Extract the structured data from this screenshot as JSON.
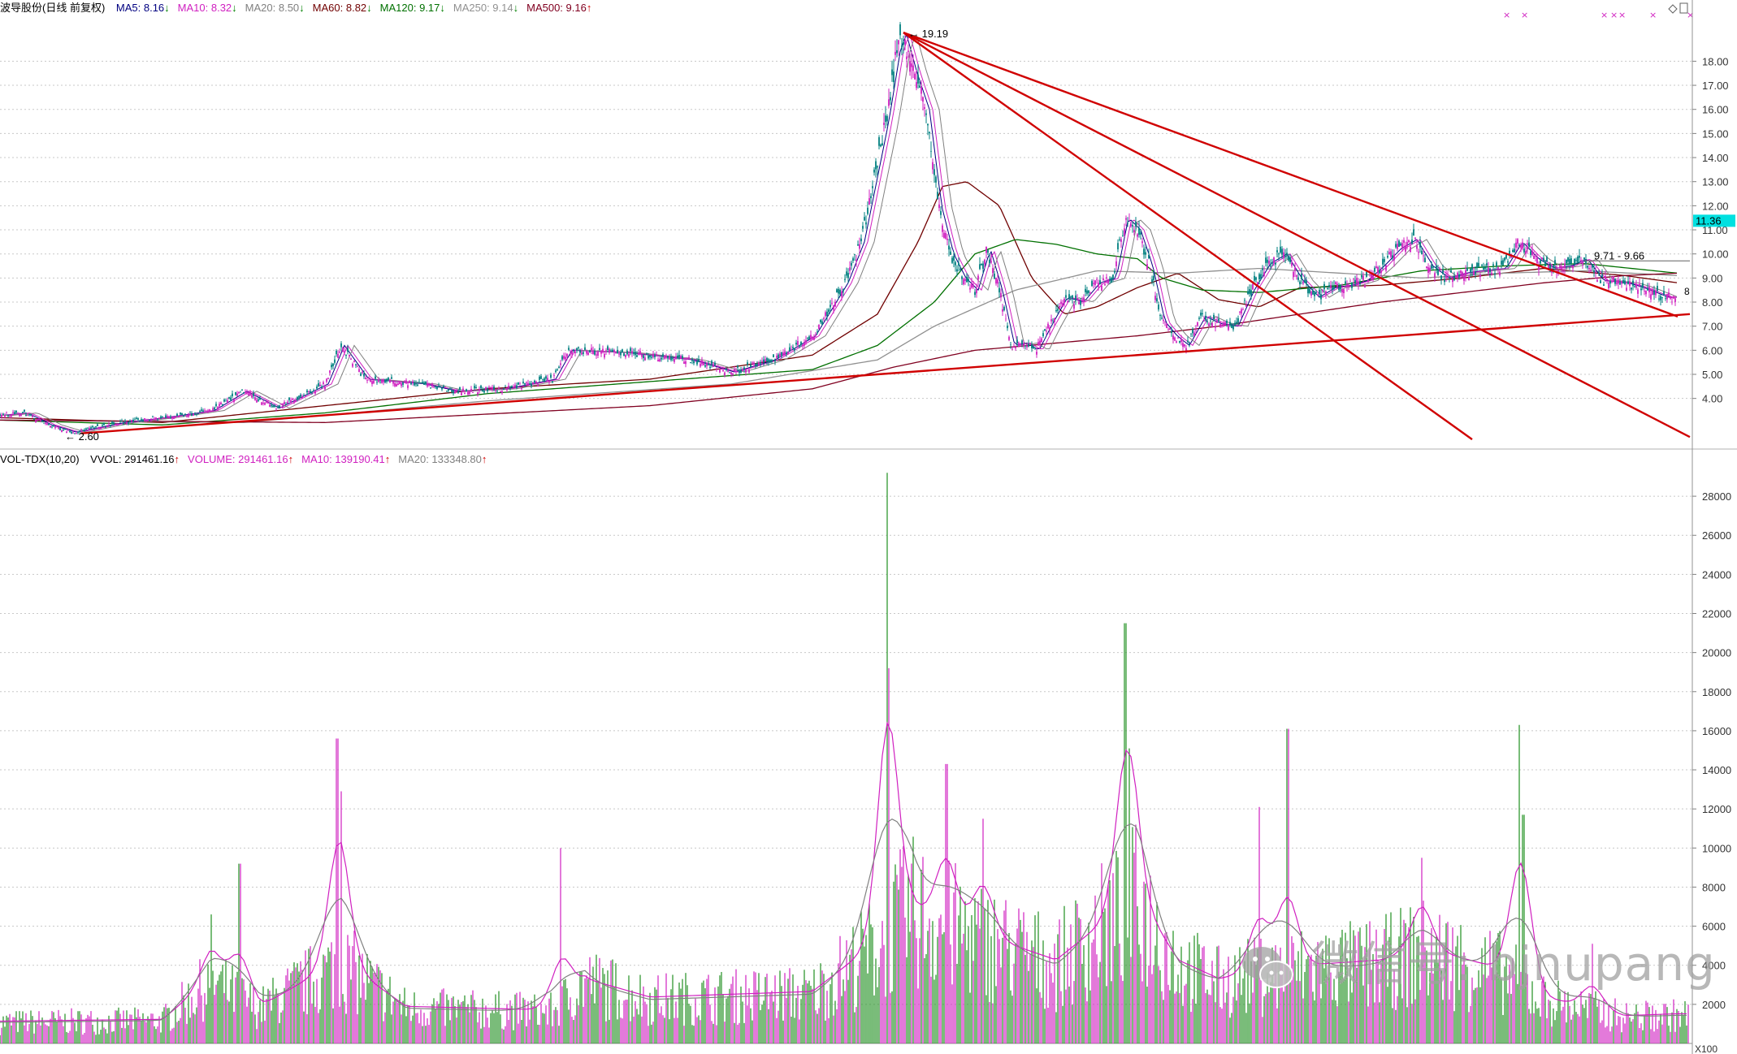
{
  "price_legend": {
    "title": "波导股份(日线 前复权)",
    "items": [
      {
        "label": "MA5: 8.16",
        "arrow": "↓",
        "dir": "dn",
        "color": "#000080"
      },
      {
        "label": "MA10: 8.32",
        "arrow": "↓",
        "dir": "dn",
        "color": "#d020c0"
      },
      {
        "label": "MA20: 8.50",
        "arrow": "↓",
        "dir": "dn",
        "color": "#808080"
      },
      {
        "label": "MA60: 8.82",
        "arrow": "↓",
        "dir": "dn",
        "color": "#700000"
      },
      {
        "label": "MA120: 9.17",
        "arrow": "↓",
        "dir": "dn",
        "color": "#007000"
      },
      {
        "label": "MA250: 9.14",
        "arrow": "↓",
        "dir": "dn",
        "color": "#909090"
      },
      {
        "label": "MA500: 9.16",
        "arrow": "↑",
        "dir": "up",
        "color": "#800020"
      }
    ]
  },
  "volume_legend": {
    "title": "VOL-TDX(10,20)",
    "items": [
      {
        "label": "VVOL: 291461.16",
        "arrow": "↑",
        "dir": "up",
        "color": "#000000"
      },
      {
        "label": "VOLUME: 291461.16",
        "arrow": "↑",
        "dir": "up",
        "color": "#d020c0"
      },
      {
        "label": "MA10: 139190.41",
        "arrow": "↑",
        "dir": "up",
        "color": "#d020c0"
      },
      {
        "label": "MA20: 133348.80",
        "arrow": "↑",
        "dir": "up",
        "color": "#808080"
      }
    ]
  },
  "annotations": {
    "high": "19.19",
    "low": "2.60",
    "range": "9.71 - 9.66",
    "current": "11.36",
    "last_mark": "8",
    "x100": "X100",
    "x_marks": "×"
  },
  "watermark": "微信号: bjnupang",
  "colors": {
    "up": "#d020c0",
    "down": "#209020",
    "trend": "#d00000",
    "badge": "#00e0e0"
  },
  "chart_data": [
    {
      "type": "candlestick",
      "title": "波导股份(日线 前复权)",
      "y_ticks": [
        4,
        5,
        6,
        7,
        8,
        9,
        10,
        11,
        12,
        13,
        14,
        15,
        16,
        17,
        18
      ],
      "y_tick_labels": [
        "4.00",
        "5.00",
        "6.00",
        "7.00",
        "8.00",
        "9.00",
        "10.00",
        "11.00",
        "12.00",
        "13.00",
        "14.00",
        "15.00",
        "16.00",
        "17.00",
        "18.00"
      ],
      "ylim": [
        2.0,
        19.8
      ],
      "grid": true,
      "bars": 1040,
      "close_path": [
        [
          0,
          3.3
        ],
        [
          30,
          3.4
        ],
        [
          60,
          2.9
        ],
        [
          90,
          2.6
        ],
        [
          150,
          3.0
        ],
        [
          200,
          3.2
        ],
        [
          260,
          3.5
        ],
        [
          300,
          4.3
        ],
        [
          340,
          3.6
        ],
        [
          400,
          4.6
        ],
        [
          420,
          6.2
        ],
        [
          450,
          4.8
        ],
        [
          520,
          4.6
        ],
        [
          560,
          4.3
        ],
        [
          620,
          4.4
        ],
        [
          680,
          4.8
        ],
        [
          700,
          6.0
        ],
        [
          770,
          5.9
        ],
        [
          850,
          5.6
        ],
        [
          900,
          5.1
        ],
        [
          950,
          5.6
        ],
        [
          1000,
          6.6
        ],
        [
          1040,
          8.8
        ],
        [
          1060,
          10.5
        ],
        [
          1075,
          13.0
        ],
        [
          1090,
          15.5
        ],
        [
          1105,
          18.6
        ],
        [
          1112,
          19.1
        ],
        [
          1125,
          17.5
        ],
        [
          1140,
          16.0
        ],
        [
          1155,
          12.0
        ],
        [
          1170,
          10.0
        ],
        [
          1185,
          9.0
        ],
        [
          1200,
          8.5
        ],
        [
          1215,
          10.2
        ],
        [
          1230,
          8.5
        ],
        [
          1245,
          6.2
        ],
        [
          1260,
          6.3
        ],
        [
          1275,
          6.0
        ],
        [
          1290,
          7.0
        ],
        [
          1310,
          8.2
        ],
        [
          1330,
          8.0
        ],
        [
          1350,
          8.8
        ],
        [
          1370,
          9.0
        ],
        [
          1385,
          11.5
        ],
        [
          1400,
          11.0
        ],
        [
          1415,
          9.5
        ],
        [
          1430,
          7.2
        ],
        [
          1445,
          6.6
        ],
        [
          1460,
          6.2
        ],
        [
          1480,
          7.4
        ],
        [
          1500,
          7.1
        ],
        [
          1520,
          7.0
        ],
        [
          1540,
          8.5
        ],
        [
          1560,
          9.6
        ],
        [
          1580,
          10.0
        ],
        [
          1600,
          8.9
        ],
        [
          1620,
          8.2
        ],
        [
          1640,
          8.6
        ],
        [
          1660,
          8.7
        ],
        [
          1680,
          8.9
        ],
        [
          1700,
          9.5
        ],
        [
          1720,
          10.2
        ],
        [
          1740,
          10.6
        ],
        [
          1760,
          9.5
        ],
        [
          1780,
          9.0
        ],
        [
          1800,
          9.2
        ],
        [
          1820,
          9.3
        ],
        [
          1850,
          9.4
        ],
        [
          1870,
          10.5
        ],
        [
          1890,
          9.8
        ],
        [
          1910,
          9.4
        ],
        [
          1930,
          9.5
        ],
        [
          1950,
          9.8
        ],
        [
          1970,
          8.9
        ],
        [
          2000,
          8.8
        ],
        [
          2020,
          8.6
        ],
        [
          2050,
          8.2
        ],
        [
          2065,
          8.2
        ]
      ],
      "x_index_to_plot_x": "linear 0..2080",
      "ma_lines": [
        {
          "name": "MA60",
          "color": "#700000",
          "path": [
            [
              0,
              3.2
            ],
            [
              200,
              3.0
            ],
            [
              400,
              3.7
            ],
            [
              600,
              4.4
            ],
            [
              800,
              4.8
            ],
            [
              1000,
              5.8
            ],
            [
              1080,
              7.5
            ],
            [
              1130,
              10.5
            ],
            [
              1160,
              12.8
            ],
            [
              1190,
              13.0
            ],
            [
              1230,
              12.0
            ],
            [
              1270,
              9.0
            ],
            [
              1310,
              7.5
            ],
            [
              1350,
              7.8
            ],
            [
              1400,
              8.6
            ],
            [
              1450,
              9.2
            ],
            [
              1500,
              8.1
            ],
            [
              1550,
              7.8
            ],
            [
              1600,
              8.6
            ],
            [
              1700,
              8.7
            ],
            [
              1800,
              9.0
            ],
            [
              1900,
              9.4
            ],
            [
              2000,
              9.1
            ],
            [
              2065,
              8.8
            ]
          ]
        },
        {
          "name": "MA120",
          "color": "#007000",
          "path": [
            [
              0,
              3.1
            ],
            [
              200,
              2.9
            ],
            [
              400,
              3.4
            ],
            [
              600,
              4.2
            ],
            [
              800,
              4.7
            ],
            [
              1000,
              5.2
            ],
            [
              1080,
              6.2
            ],
            [
              1150,
              8.0
            ],
            [
              1200,
              10.0
            ],
            [
              1250,
              10.6
            ],
            [
              1300,
              10.4
            ],
            [
              1350,
              10.0
            ],
            [
              1400,
              9.8
            ],
            [
              1430,
              9.0
            ],
            [
              1480,
              8.5
            ],
            [
              1550,
              8.4
            ],
            [
              1650,
              8.7
            ],
            [
              1750,
              9.3
            ],
            [
              1850,
              9.5
            ],
            [
              1950,
              9.6
            ],
            [
              2065,
              9.2
            ]
          ]
        },
        {
          "name": "MA250",
          "color": "#909090",
          "path": [
            [
              0,
              3.1
            ],
            [
              300,
              3.0
            ],
            [
              600,
              3.9
            ],
            [
              900,
              4.6
            ],
            [
              1080,
              5.6
            ],
            [
              1150,
              7.0
            ],
            [
              1250,
              8.5
            ],
            [
              1350,
              9.3
            ],
            [
              1450,
              9.2
            ],
            [
              1550,
              9.4
            ],
            [
              1650,
              9.2
            ],
            [
              1750,
              9.0
            ],
            [
              1850,
              9.2
            ],
            [
              1950,
              9.3
            ],
            [
              2065,
              9.1
            ]
          ]
        },
        {
          "name": "MA500",
          "color": "#800020",
          "path": [
            [
              0,
              3.1
            ],
            [
              400,
              3.0
            ],
            [
              800,
              3.7
            ],
            [
              1000,
              4.4
            ],
            [
              1100,
              5.3
            ],
            [
              1200,
              6.0
            ],
            [
              1300,
              6.3
            ],
            [
              1400,
              6.6
            ],
            [
              1500,
              7.0
            ],
            [
              1600,
              7.5
            ],
            [
              1700,
              8.0
            ],
            [
              1800,
              8.4
            ],
            [
              1900,
              8.8
            ],
            [
              2000,
              9.1
            ],
            [
              2065,
              9.2
            ]
          ]
        }
      ],
      "trend_lines": [
        {
          "from": [
            1112,
            19.19
          ],
          "to": [
            2065,
            7.4
          ]
        },
        {
          "from": [
            1112,
            19.19
          ],
          "to": [
            1812,
            2.3
          ]
        },
        {
          "from": [
            1112,
            19.19
          ],
          "to": [
            2080,
            2.4
          ]
        },
        {
          "from": [
            100,
            2.55
          ],
          "to": [
            2080,
            7.5
          ]
        }
      ]
    },
    {
      "type": "bar",
      "title": "VOL-TDX(10,20)",
      "y_ticks": [
        2000,
        4000,
        6000,
        8000,
        10000,
        12000,
        14000,
        16000,
        18000,
        20000,
        22000,
        24000,
        26000,
        28000
      ],
      "y_tick_labels": [
        "2000",
        "4000",
        "6000",
        "8000",
        "10000",
        "12000",
        "14000",
        "16000",
        "18000",
        "20000",
        "22000",
        "24000",
        "26000",
        "28000"
      ],
      "ylim": [
        0,
        29500
      ],
      "unit": "X100",
      "grid": true,
      "peaks": [
        [
          260,
          6600
        ],
        [
          295,
          9200
        ],
        [
          415,
          15600
        ],
        [
          420,
          12900
        ],
        [
          690,
          10000
        ],
        [
          1092,
          29200
        ],
        [
          1094,
          19200
        ],
        [
          1165,
          14300
        ],
        [
          1210,
          11500
        ],
        [
          1385,
          21500
        ],
        [
          1390,
          15100
        ],
        [
          1550,
          12100
        ],
        [
          1585,
          16100
        ],
        [
          1750,
          9500
        ],
        [
          1870,
          16300
        ],
        [
          1875,
          11700
        ],
        [
          1960,
          5100
        ]
      ],
      "baseline_profile": [
        [
          0,
          1200
        ],
        [
          200,
          1300
        ],
        [
          260,
          3500
        ],
        [
          320,
          2000
        ],
        [
          420,
          4500
        ],
        [
          500,
          2000
        ],
        [
          680,
          1800
        ],
        [
          720,
          3500
        ],
        [
          800,
          2500
        ],
        [
          1000,
          2800
        ],
        [
          1080,
          5500
        ],
        [
          1120,
          7500
        ],
        [
          1200,
          6000
        ],
        [
          1300,
          4500
        ],
        [
          1400,
          8000
        ],
        [
          1450,
          4500
        ],
        [
          1500,
          3500
        ],
        [
          1600,
          4200
        ],
        [
          1700,
          4500
        ],
        [
          1750,
          5200
        ],
        [
          1850,
          4000
        ],
        [
          1900,
          2500
        ],
        [
          2000,
          1500
        ],
        [
          2065,
          1600
        ]
      ],
      "ma_lines": [
        {
          "name": "MA10",
          "color": "#d020c0"
        },
        {
          "name": "MA20",
          "color": "#808080"
        }
      ]
    }
  ]
}
